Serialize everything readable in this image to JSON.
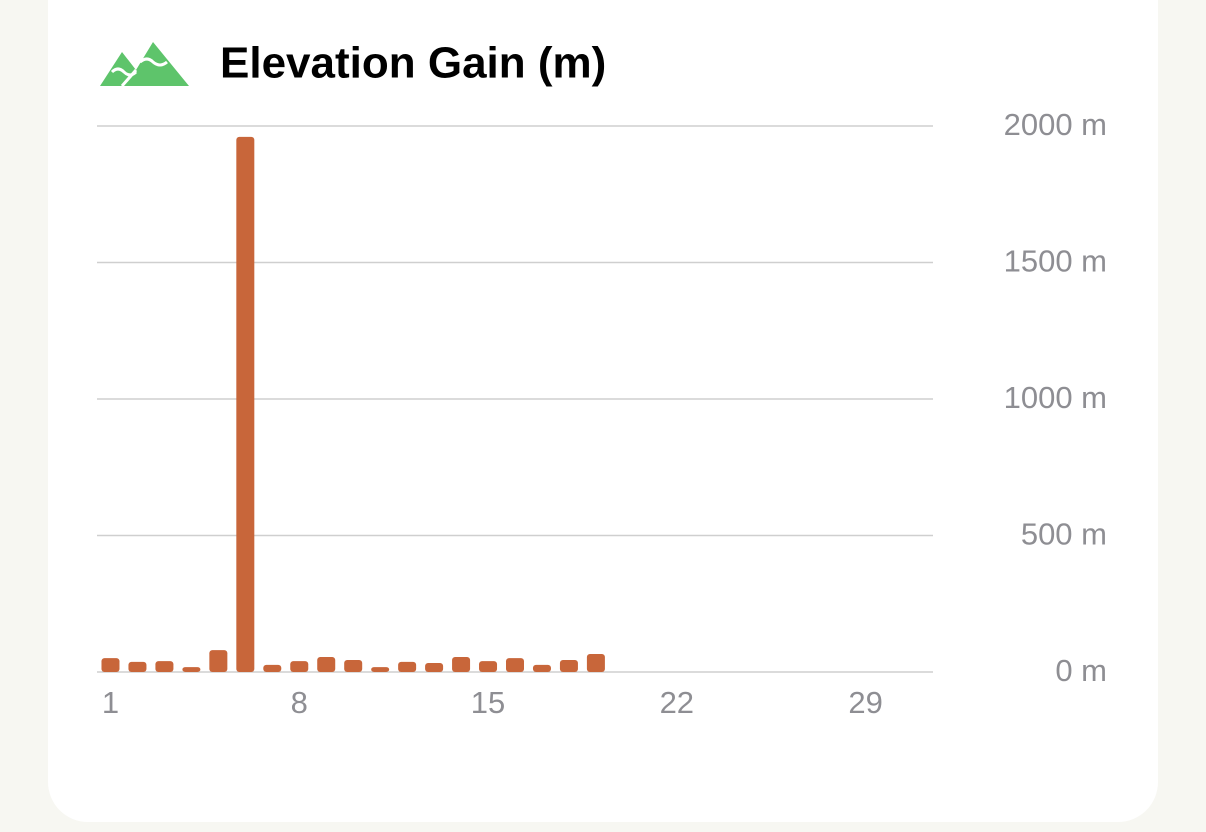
{
  "chart_data": {
    "type": "bar",
    "title": "Elevation Gain (m)",
    "categories": [
      "1",
      null,
      null,
      null,
      null,
      null,
      null,
      "8",
      null,
      null,
      null,
      null,
      null,
      null,
      "15",
      null,
      null,
      null,
      null,
      null,
      null,
      "22",
      null,
      null,
      null,
      null,
      null,
      null,
      "29",
      null,
      null
    ],
    "values": [
      51,
      37,
      40,
      18,
      80,
      1960,
      26,
      40,
      55,
      44,
      18,
      37,
      33,
      55,
      40,
      51,
      26,
      44,
      66,
      null,
      null,
      null,
      null,
      null,
      null,
      null,
      null,
      null,
      null,
      null,
      null
    ],
    "color": "#c8663a",
    "ylim": [
      0,
      2000
    ],
    "yticks": [
      {
        "value": 0,
        "label": "0 m"
      },
      {
        "value": 500,
        "label": "500 m"
      },
      {
        "value": 1000,
        "label": "1000 m"
      },
      {
        "value": 1500,
        "label": "1500 m"
      },
      {
        "value": 2000,
        "label": "2000 m"
      }
    ],
    "grid": true
  }
}
